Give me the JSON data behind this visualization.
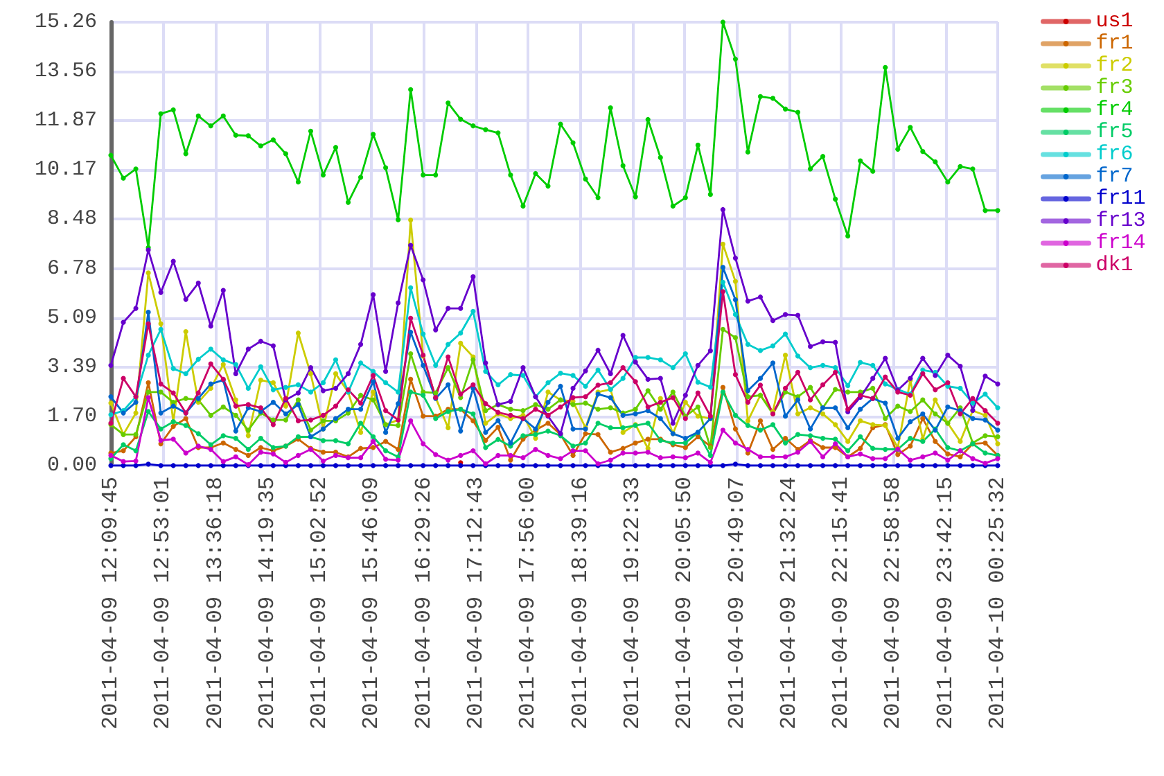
{
  "chart_data": {
    "type": "line",
    "x": [
      "2011-04-09T12:09:45",
      "2011-04-09T12:20:07",
      "2011-04-09T12:30:29",
      "2011-04-09T12:40:50",
      "2011-04-09T12:51:12",
      "2011-04-09T13:01:34",
      "2011-04-09T13:11:56",
      "2011-04-09T13:22:18",
      "2011-04-09T13:32:39",
      "2011-04-09T13:43:01",
      "2011-04-09T13:53:23",
      "2011-04-09T14:03:45",
      "2011-04-09T14:14:06",
      "2011-04-09T14:24:28",
      "2011-04-09T14:34:50",
      "2011-04-09T14:45:12",
      "2011-04-09T14:55:34",
      "2011-04-09T15:05:55",
      "2011-04-09T15:16:17",
      "2011-04-09T15:26:39",
      "2011-04-09T15:37:01",
      "2011-04-09T15:47:23",
      "2011-04-09T15:57:44",
      "2011-04-09T16:08:06",
      "2011-04-09T16:18:28",
      "2011-04-09T16:28:50",
      "2011-04-09T16:39:12",
      "2011-04-09T16:49:33",
      "2011-04-09T16:59:55",
      "2011-04-09T17:10:17",
      "2011-04-09T17:20:39",
      "2011-04-09T17:31:00",
      "2011-04-09T17:41:22",
      "2011-04-09T17:51:44",
      "2011-04-09T18:02:06",
      "2011-04-09T18:12:28",
      "2011-04-09T18:22:49",
      "2011-04-09T18:33:11",
      "2011-04-09T18:43:33",
      "2011-04-09T18:53:55",
      "2011-04-09T19:04:17",
      "2011-04-09T19:14:38",
      "2011-04-09T19:25:00",
      "2011-04-09T19:35:22",
      "2011-04-09T19:45:44",
      "2011-04-09T19:56:06",
      "2011-04-09T20:06:27",
      "2011-04-09T20:16:49",
      "2011-04-09T20:27:11",
      "2011-04-09T20:37:33",
      "2011-04-09T20:47:55",
      "2011-04-09T20:58:16",
      "2011-04-09T21:08:38",
      "2011-04-09T21:19:00",
      "2011-04-09T21:29:22",
      "2011-04-09T21:39:43",
      "2011-04-09T21:50:05",
      "2011-04-09T22:00:27",
      "2011-04-09T22:10:49",
      "2011-04-09T22:21:11",
      "2011-04-09T22:31:32",
      "2011-04-09T22:41:54",
      "2011-04-09T22:52:16",
      "2011-04-09T23:02:38",
      "2011-04-09T23:13:00",
      "2011-04-09T23:23:21",
      "2011-04-09T23:33:43",
      "2011-04-09T23:44:05",
      "2011-04-09T23:54:27",
      "2011-04-10T00:04:49",
      "2011-04-10T00:15:10",
      "2011-04-10T00:25:32"
    ],
    "xlim": [
      "2011-04-09T12:09:45",
      "2011-04-10T00:25:32"
    ],
    "xticks": [
      {
        "value": "2011-04-09T12:09:45",
        "label": "2011-04-09 12:09:45"
      },
      {
        "value": "2011-04-09T12:53:01",
        "label": "2011-04-09 12:53:01"
      },
      {
        "value": "2011-04-09T13:36:18",
        "label": "2011-04-09 13:36:18"
      },
      {
        "value": "2011-04-09T14:19:35",
        "label": "2011-04-09 14:19:35"
      },
      {
        "value": "2011-04-09T15:02:52",
        "label": "2011-04-09 15:02:52"
      },
      {
        "value": "2011-04-09T15:46:09",
        "label": "2011-04-09 15:46:09"
      },
      {
        "value": "2011-04-09T16:29:26",
        "label": "2011-04-09 16:29:26"
      },
      {
        "value": "2011-04-09T17:12:43",
        "label": "2011-04-09 17:12:43"
      },
      {
        "value": "2011-04-09T17:56:00",
        "label": "2011-04-09 17:56:00"
      },
      {
        "value": "2011-04-09T18:39:16",
        "label": "2011-04-09 18:39:16"
      },
      {
        "value": "2011-04-09T19:22:33",
        "label": "2011-04-09 19:22:33"
      },
      {
        "value": "2011-04-09T20:05:50",
        "label": "2011-04-09 20:05:50"
      },
      {
        "value": "2011-04-09T20:49:07",
        "label": "2011-04-09 20:49:07"
      },
      {
        "value": "2011-04-09T21:32:24",
        "label": "2011-04-09 21:32:24"
      },
      {
        "value": "2011-04-09T22:15:41",
        "label": "2011-04-09 22:15:41"
      },
      {
        "value": "2011-04-09T22:58:58",
        "label": "2011-04-09 22:58:58"
      },
      {
        "value": "2011-04-09T23:42:15",
        "label": "2011-04-09 23:42:15"
      },
      {
        "value": "2011-04-10T00:25:32",
        "label": "2011-04-10 00:25:32"
      }
    ],
    "ylim": [
      0,
      15.26
    ],
    "yticks": [
      {
        "value": 0,
        "label": "0.00"
      },
      {
        "value": 1.7,
        "label": "1.70"
      },
      {
        "value": 3.39,
        "label": "3.39"
      },
      {
        "value": 5.09,
        "label": "5.09"
      },
      {
        "value": 6.78,
        "label": "6.78"
      },
      {
        "value": 8.48,
        "label": "8.48"
      },
      {
        "value": 10.17,
        "label": "10.17"
      },
      {
        "value": 11.87,
        "label": "11.87"
      },
      {
        "value": 13.56,
        "label": "13.56"
      },
      {
        "value": 15.26,
        "label": "15.26"
      }
    ],
    "grid": true,
    "legend": "right",
    "marker": "circle",
    "series": [
      {
        "name": "us1",
        "color": "#cc0000",
        "values": [
          null,
          null,
          null,
          null,
          null,
          null,
          null,
          null,
          null,
          null,
          null,
          null,
          null,
          null,
          null,
          null,
          null,
          null,
          null,
          null,
          null,
          null,
          null,
          null,
          null,
          null,
          null,
          null,
          0.1,
          null,
          null,
          null,
          null,
          null,
          null,
          null,
          null,
          null,
          null,
          null,
          null,
          null,
          null,
          null,
          null,
          null,
          null,
          null,
          null,
          null,
          null,
          null,
          null,
          null,
          null,
          null,
          null,
          null,
          null,
          null,
          null,
          null,
          null,
          null,
          null,
          null,
          null,
          null,
          null,
          null,
          null,
          null
        ]
      },
      {
        "name": "fr1",
        "color": "#cc6600",
        "values": [
          0.43,
          0.51,
          0.99,
          2.85,
          0.75,
          1.35,
          1.62,
          0.62,
          0.62,
          0.78,
          0.56,
          0.35,
          0.62,
          0.51,
          0.67,
          0.91,
          0.59,
          0.46,
          0.46,
          0.3,
          0.59,
          0.62,
          0.83,
          0.56,
          2.97,
          1.7,
          1.7,
          1.94,
          1.94,
          1.54,
          0.87,
          1.32,
          0.19,
          0.91,
          1.22,
          1.46,
          1.07,
          0.35,
          1.1,
          1.07,
          0.46,
          0.59,
          0.78,
          0.91,
          0.91,
          0.72,
          0.62,
          0.99,
          0.67,
          2.69,
          1.26,
          0.43,
          1.54,
          0.56,
          0.94,
          0.56,
          0.87,
          0.62,
          0.62,
          0.3,
          0.59,
          1.3,
          1.41,
          0.38,
          0.67,
          1.62,
          0.83,
          0.4,
          0.3,
          0.75,
          0.78,
          0.35
        ]
      },
      {
        "name": "fr2",
        "color": "#cccc00",
        "values": [
          2.15,
          1.07,
          1.81,
          6.63,
          4.88,
          1.51,
          4.61,
          2.18,
          2.66,
          3.48,
          2.26,
          1.03,
          2.94,
          2.85,
          2.05,
          4.56,
          3.16,
          1.26,
          3.16,
          2.53,
          1.14,
          2.53,
          1.41,
          1.57,
          8.45,
          3.77,
          2.34,
          1.3,
          4.21,
          3.74,
          1.46,
          1.78,
          1.62,
          1.73,
          0.94,
          2.53,
          2.26,
          2.21,
          1.3,
          2.53,
          2.62,
          1.14,
          1.41,
          0.59,
          2.31,
          1.1,
          2.18,
          1.7,
          1.62,
          7.62,
          6.34,
          1.54,
          2.42,
          1.86,
          3.8,
          1.78,
          1.99,
          1.78,
          1.41,
          0.83,
          1.54,
          1.41,
          1.38,
          0.62,
          2.94,
          0.91,
          2.26,
          1.46,
          0.83,
          1.89,
          1.73,
          0.75
        ]
      },
      {
        "name": "fr3",
        "color": "#66cc00",
        "values": [
          1.41,
          1.07,
          1.07,
          2.53,
          2.53,
          2.18,
          2.31,
          2.26,
          1.73,
          2.02,
          1.73,
          1.22,
          1.81,
          1.57,
          1.57,
          2.26,
          1.22,
          1.54,
          1.54,
          1.81,
          2.42,
          2.26,
          1.41,
          1.38,
          3.85,
          2.53,
          2.5,
          3.37,
          2.34,
          3.64,
          1.89,
          2.1,
          1.94,
          1.89,
          2.1,
          1.94,
          2.26,
          2.1,
          2.15,
          1.94,
          1.99,
          1.81,
          1.94,
          2.58,
          1.94,
          2.53,
          1.7,
          2.02,
          0.62,
          4.69,
          4.4,
          2.37,
          2.42,
          1.78,
          2.53,
          2.37,
          2.69,
          1.99,
          2.62,
          2.53,
          2.53,
          2.66,
          1.62,
          2.05,
          1.86,
          2.26,
          1.78,
          1.46,
          1.99,
          0.78,
          1.03,
          0.99
        ]
      },
      {
        "name": "fr4",
        "color": "#00cc00",
        "values": [
          10.68,
          9.89,
          10.21,
          7.5,
          12.11,
          12.24,
          10.73,
          12.03,
          11.69,
          12.03,
          11.37,
          11.35,
          11.0,
          11.21,
          10.73,
          9.76,
          11.51,
          10.0,
          10.95,
          9.06,
          9.92,
          11.4,
          10.25,
          8.46,
          12.94,
          10.0,
          10.0,
          12.48,
          11.92,
          11.69,
          11.56,
          11.45,
          10.0,
          8.93,
          10.05,
          9.62,
          11.75,
          11.11,
          9.86,
          9.22,
          12.31,
          10.32,
          9.25,
          11.91,
          10.6,
          8.93,
          9.22,
          11.03,
          9.33,
          15.26,
          13.99,
          10.79,
          12.7,
          12.64,
          12.27,
          12.16,
          10.21,
          10.64,
          9.17,
          7.9,
          10.49,
          10.13,
          13.7,
          10.89,
          11.64,
          10.81,
          10.45,
          9.76,
          10.29,
          10.21,
          8.78,
          8.78
        ]
      },
      {
        "name": "fr5",
        "color": "#00cc66",
        "values": [
          0.24,
          0.72,
          0.51,
          1.86,
          1.26,
          1.51,
          1.38,
          1.1,
          0.72,
          1.03,
          0.94,
          0.56,
          0.94,
          0.62,
          0.67,
          0.99,
          0.99,
          0.86,
          0.86,
          0.75,
          1.46,
          0.99,
          0.51,
          0.3,
          2.53,
          2.42,
          1.62,
          1.86,
          1.94,
          1.78,
          0.62,
          0.9,
          0.67,
          1.03,
          1.07,
          1.19,
          1.03,
          0.67,
          0.78,
          1.46,
          1.3,
          1.3,
          1.38,
          1.46,
          0.87,
          0.78,
          0.78,
          1.14,
          0.35,
          2.53,
          1.73,
          1.38,
          1.22,
          1.41,
          0.78,
          1.07,
          1.03,
          0.94,
          0.91,
          0.51,
          0.99,
          0.59,
          0.56,
          0.56,
          0.94,
          0.83,
          1.26,
          0.62,
          0.51,
          0.75,
          0.43,
          0.35
        ]
      },
      {
        "name": "fr6",
        "color": "#00cccc",
        "values": [
          1.75,
          1.89,
          2.37,
          3.8,
          4.69,
          3.34,
          3.16,
          3.66,
          4.01,
          3.64,
          3.48,
          2.66,
          3.4,
          2.61,
          2.69,
          2.78,
          2.53,
          2.85,
          3.64,
          2.53,
          3.53,
          3.24,
          2.85,
          2.53,
          6.12,
          4.53,
          3.45,
          4.17,
          4.56,
          5.31,
          3.24,
          2.78,
          3.13,
          3.1,
          2.37,
          2.85,
          3.18,
          3.1,
          2.73,
          3.29,
          2.62,
          3.0,
          3.72,
          3.72,
          3.64,
          3.37,
          3.85,
          2.87,
          2.7,
          6.31,
          5.2,
          4.17,
          3.96,
          4.12,
          4.53,
          3.77,
          3.37,
          3.45,
          3.37,
          2.75,
          3.55,
          3.45,
          2.81,
          2.62,
          2.46,
          3.29,
          3.21,
          2.73,
          2.66,
          2.15,
          2.46,
          1.99
        ]
      },
      {
        "name": "fr7",
        "color": "#0066cc",
        "values": [
          2.37,
          1.81,
          2.18,
          5.28,
          1.81,
          2.05,
          1.81,
          2.31,
          2.81,
          2.94,
          1.19,
          1.99,
          1.86,
          2.18,
          1.78,
          2.1,
          0.99,
          1.26,
          1.62,
          1.94,
          1.94,
          2.89,
          1.14,
          2.13,
          4.59,
          3.45,
          2.31,
          2.78,
          1.19,
          2.66,
          1.14,
          1.55,
          0.78,
          1.62,
          1.26,
          2.18,
          2.73,
          1.26,
          1.26,
          2.46,
          2.34,
          1.73,
          1.78,
          1.89,
          1.62,
          1.1,
          0.94,
          1.15,
          1.62,
          6.82,
          5.71,
          2.58,
          3.0,
          3.53,
          1.7,
          2.26,
          1.26,
          1.99,
          1.99,
          1.3,
          1.94,
          2.31,
          2.15,
          0.94,
          1.51,
          1.78,
          1.22,
          2.02,
          1.89,
          1.62,
          1.57,
          1.22
        ]
      },
      {
        "name": "fr11",
        "color": "#0000cc",
        "values": [
          0,
          0,
          0,
          0.05,
          0,
          0,
          0,
          0,
          0,
          0,
          0,
          0,
          0,
          0,
          0,
          0,
          0,
          0,
          0,
          0,
          0,
          0,
          0,
          0,
          0,
          0,
          0,
          0,
          0,
          0,
          0,
          0,
          0,
          0,
          0,
          0,
          0,
          0,
          0,
          0,
          0,
          0,
          0,
          0,
          0,
          0,
          0,
          0,
          0,
          0,
          0.05,
          0,
          0,
          0,
          0,
          0,
          0,
          0,
          0,
          0,
          0,
          0,
          0,
          0,
          0,
          0,
          0,
          0,
          0,
          0,
          0,
          0
        ]
      },
      {
        "name": "fr13",
        "color": "#6600cc",
        "values": [
          3.45,
          4.93,
          5.41,
          7.42,
          5.96,
          7.03,
          5.72,
          6.28,
          4.8,
          6.03,
          3.16,
          4.01,
          4.28,
          4.12,
          2.26,
          2.5,
          3.37,
          2.58,
          2.66,
          3.16,
          4.17,
          5.88,
          3.24,
          5.6,
          7.58,
          6.39,
          4.67,
          5.41,
          5.41,
          6.5,
          3.53,
          2.1,
          2.21,
          3.37,
          2.37,
          1.7,
          1.1,
          2.66,
          3.26,
          3.97,
          3.16,
          4.48,
          3.56,
          2.97,
          3.0,
          1.46,
          2.42,
          3.45,
          3.95,
          8.81,
          7.14,
          5.66,
          5.8,
          4.99,
          5.2,
          5.17,
          4.1,
          4.26,
          4.24,
          1.85,
          2.35,
          3.0,
          3.69,
          2.6,
          3.0,
          3.69,
          3.1,
          3.8,
          3.42,
          1.9,
          3.08,
          2.81
        ]
      },
      {
        "name": "fr14",
        "color": "#cc00cc",
        "values": [
          0.35,
          0.14,
          0.16,
          2.34,
          0.87,
          0.91,
          0.43,
          0.67,
          0.56,
          0.14,
          0.3,
          0.03,
          0.46,
          0.4,
          0.11,
          0.35,
          0.56,
          0.16,
          0.35,
          0.27,
          0.27,
          0.83,
          0.22,
          0.19,
          1.54,
          0.75,
          0.38,
          0.19,
          0.35,
          0.51,
          0.06,
          0.35,
          0.35,
          0.27,
          0.56,
          0.35,
          0.24,
          0.51,
          0.51,
          0.06,
          0.19,
          0.43,
          0.43,
          0.46,
          0.27,
          0.3,
          0.27,
          0.43,
          0.11,
          1.22,
          0.78,
          0.56,
          0.3,
          0.3,
          0.3,
          0.46,
          0.83,
          0.3,
          0.75,
          0.3,
          0.4,
          0.24,
          0.24,
          0.57,
          0.19,
          0.3,
          0.43,
          0.19,
          0.51,
          0.24,
          0.08,
          0.24
        ]
      },
      {
        "name": "dk1",
        "color": "#cc0066",
        "values": [
          1.46,
          3.0,
          2.37,
          4.88,
          2.81,
          2.5,
          1.81,
          2.5,
          3.5,
          2.97,
          2.05,
          2.1,
          1.99,
          1.41,
          2.31,
          1.54,
          1.57,
          1.73,
          2.05,
          2.61,
          2.15,
          3.1,
          1.89,
          1.57,
          5.07,
          3.8,
          2.34,
          3.74,
          2.46,
          2.78,
          2.13,
          1.83,
          1.73,
          1.62,
          1.94,
          1.73,
          2.02,
          2.34,
          2.37,
          2.77,
          2.85,
          3.37,
          2.89,
          2.02,
          2.18,
          2.34,
          1.62,
          2.5,
          1.7,
          5.99,
          3.13,
          2.18,
          2.77,
          1.78,
          2.66,
          3.21,
          2.26,
          2.78,
          3.21,
          1.94,
          2.42,
          2.31,
          3.05,
          2.53,
          2.42,
          3.16,
          2.61,
          2.85,
          1.78,
          2.31,
          1.89,
          1.46
        ]
      }
    ]
  }
}
